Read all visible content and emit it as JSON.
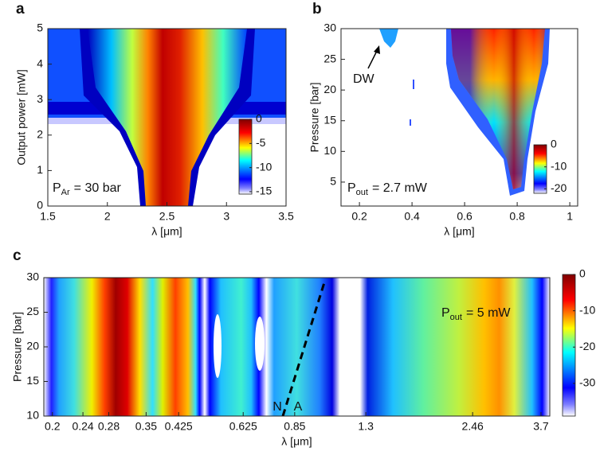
{
  "chart_data": [
    {
      "type": "heatmap",
      "panel_label": "a",
      "xlabel": "λ [μm]",
      "ylabel": "Output power [mW]",
      "xlim": [
        1.5,
        3.5
      ],
      "ylim": [
        0,
        5
      ],
      "xticks": [
        1.5,
        2,
        2.5,
        3,
        3.5
      ],
      "yticks": [
        0,
        1,
        2,
        3,
        4,
        5
      ],
      "clim": [
        -15.5,
        0
      ],
      "cticks": [
        0,
        -5,
        -10,
        -15
      ],
      "annotation": {
        "text": "P",
        "subscript": "Ar",
        "suffix": "= 30 bar"
      }
    },
    {
      "type": "heatmap",
      "panel_label": "b",
      "xlabel": "λ [μm]",
      "ylabel": "Pressure [bar]",
      "xlim": [
        0.13,
        1.03
      ],
      "ylim": [
        1.1,
        30
      ],
      "xticks": [
        0.2,
        0.4,
        0.6,
        0.8,
        1
      ],
      "yticks": [
        5,
        10,
        15,
        20,
        25,
        30
      ],
      "clim": [
        -22,
        0
      ],
      "cticks": [
        0,
        -10,
        -20
      ],
      "annotation": {
        "text": "P",
        "subscript": "out",
        "suffix": "= 2.7 mW"
      },
      "marker_label": "DW"
    },
    {
      "type": "heatmap",
      "panel_label": "c",
      "xlabel": "λ [μm]",
      "ylabel": "Pressure [bar]",
      "xscale": "log",
      "xlim": [
        0.19,
        3.9
      ],
      "ylim": [
        10,
        30
      ],
      "xticks": [
        0.2,
        0.24,
        0.28,
        0.35,
        0.425,
        0.625,
        0.85,
        1.3,
        2.46,
        3.7
      ],
      "yticks": [
        10,
        15,
        20,
        25,
        30
      ],
      "clim": [
        -39,
        0
      ],
      "cticks": [
        0,
        -10,
        -20,
        -30
      ],
      "annotation": {
        "text": "P",
        "subscript": "out",
        "suffix": "= 5 mW"
      },
      "marker_labels": [
        "N",
        "A"
      ]
    }
  ]
}
